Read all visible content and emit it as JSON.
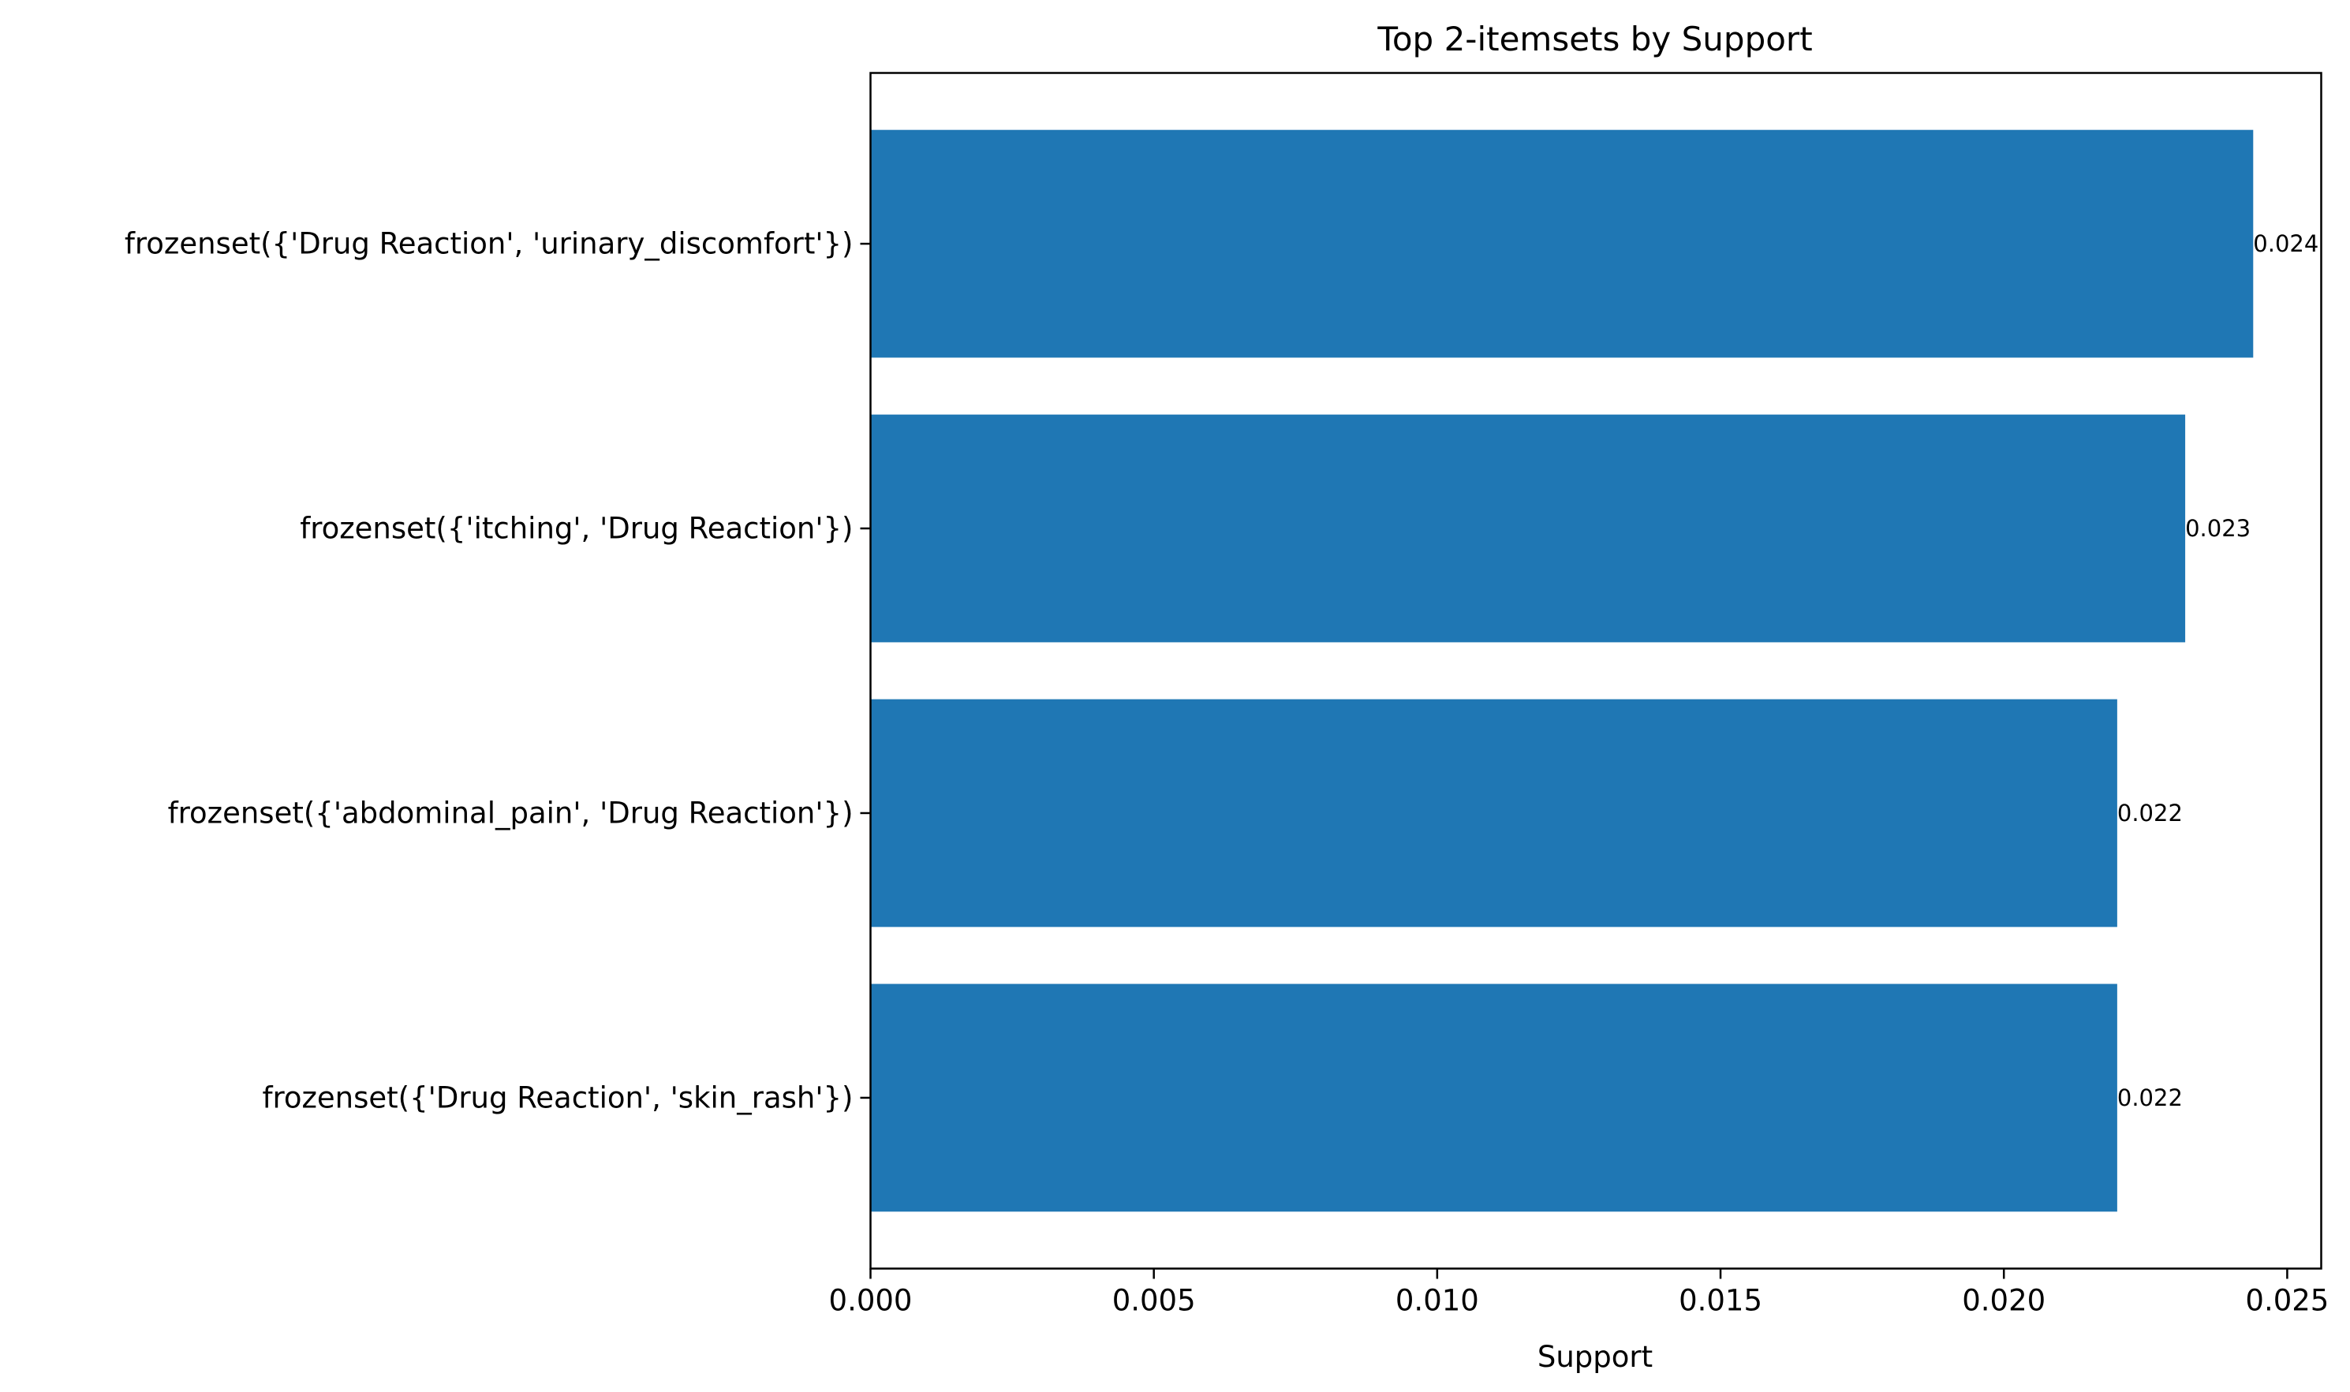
{
  "chart_data": {
    "type": "bar",
    "orientation": "horizontal",
    "title": "Top 2-itemsets by Support",
    "xlabel": "Support",
    "ylabel": "",
    "categories": [
      "frozenset({'Drug Reaction', 'urinary_discomfort'})",
      "frozenset({'itching', 'Drug Reaction'})",
      "frozenset({'abdominal_pain', 'Drug Reaction'})",
      "frozenset({'Drug Reaction', 'skin_rash'})"
    ],
    "values": [
      0.0244,
      0.0232,
      0.022,
      0.022
    ],
    "data_labels": [
      "0.024",
      "0.023",
      "0.022",
      "0.022"
    ],
    "xlim": [
      0,
      0.0256
    ],
    "xticks": [
      0,
      0.005,
      0.01,
      0.015,
      0.02,
      0.025
    ],
    "xtick_labels": [
      "0.000",
      "0.005",
      "0.010",
      "0.015",
      "0.020",
      "0.025"
    ],
    "bar_color": "#1f77b4",
    "grid": false,
    "legend": "none"
  }
}
